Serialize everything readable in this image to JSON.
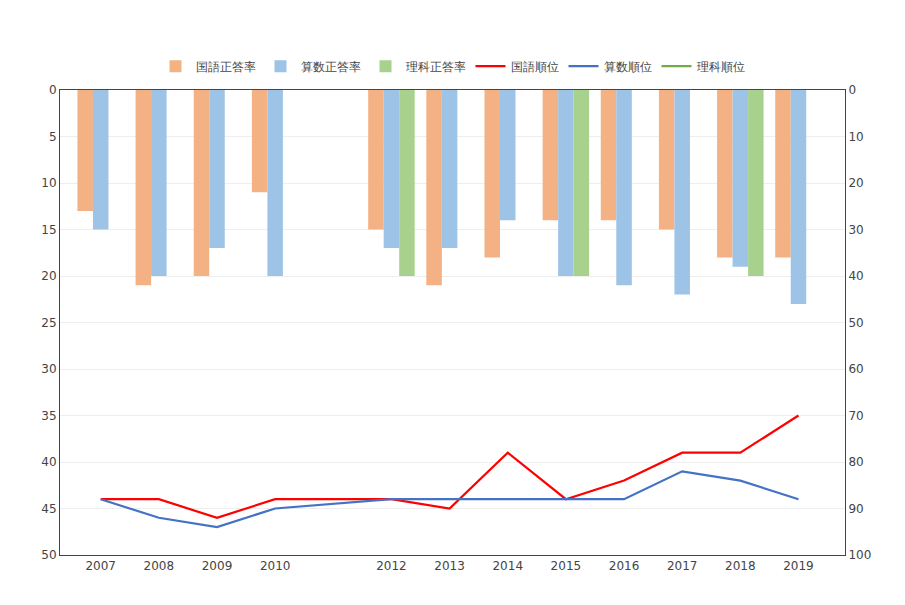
{
  "chart_data": {
    "type": "bar",
    "x": [
      2007,
      2008,
      2009,
      2010,
      2012,
      2013,
      2014,
      2015,
      2016,
      2017,
      2018,
      2019
    ],
    "xlim": [
      2006.3,
      2019.8
    ],
    "xticks": [
      2007,
      2008,
      2009,
      2010,
      2012,
      2013,
      2014,
      2015,
      2016,
      2017,
      2018,
      2019
    ],
    "ylim": [
      50,
      0
    ],
    "yticks": [
      0,
      5,
      10,
      15,
      20,
      25,
      30,
      35,
      40,
      45,
      50
    ],
    "y2lim": [
      100,
      0
    ],
    "y2ticks": [
      0,
      10,
      20,
      30,
      40,
      50,
      60,
      70,
      80,
      90,
      100
    ],
    "grid": true,
    "legend": "top",
    "series": [
      {
        "name": "国語正答率",
        "type": "bar",
        "color": "#F4B183",
        "values": [
          13,
          21,
          20,
          11,
          15,
          21,
          18,
          14,
          14,
          15,
          18,
          18
        ]
      },
      {
        "name": "算数正答率",
        "type": "bar",
        "color": "#9DC3E6",
        "values": [
          15,
          20,
          17,
          20,
          17,
          17,
          14,
          20,
          21,
          22,
          19,
          23
        ]
      },
      {
        "name": "理科正答率",
        "type": "bar",
        "color": "#A9D18E",
        "values": [
          null,
          null,
          null,
          null,
          20,
          null,
          null,
          20,
          null,
          null,
          20,
          null
        ]
      },
      {
        "name": "国語順位",
        "type": "line",
        "color": "#FF0000",
        "values": [
          44,
          44,
          46,
          44,
          44,
          45,
          39,
          44,
          42,
          39,
          39,
          35
        ]
      },
      {
        "name": "算数順位",
        "type": "line",
        "color": "#4472C4",
        "values": [
          44,
          46,
          47,
          45,
          44,
          44,
          44,
          44,
          44,
          41,
          42,
          44
        ]
      },
      {
        "name": "理科順位",
        "type": "line",
        "color": "#70AD47",
        "values": [
          null,
          null,
          null,
          null,
          null,
          null,
          null,
          null,
          null,
          null,
          null,
          null
        ]
      }
    ]
  }
}
